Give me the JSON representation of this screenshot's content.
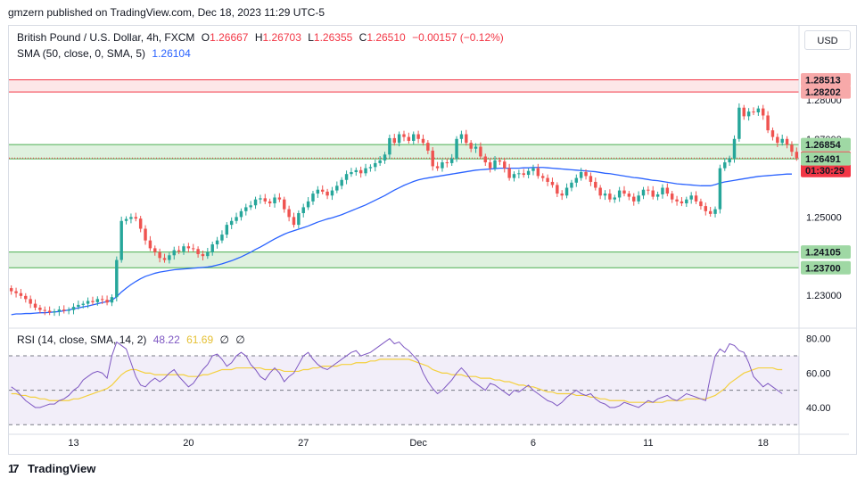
{
  "header": {
    "publisher": "gmzern published on TradingView.com, Dec 18, 2023 11:29 UTC-5"
  },
  "legend": {
    "symbol": "British Pound / U.S. Dollar, 4h, FXCM",
    "o_label": "O",
    "o": "1.26667",
    "h_label": "H",
    "h": "1.26703",
    "l_label": "L",
    "l": "1.26355",
    "c_label": "C",
    "c": "1.26510",
    "change": "−0.00157 (−0.12%)"
  },
  "sma": {
    "label": "SMA (50, close, 0, SMA, 5)",
    "value": "1.26104",
    "color": "#2962ff"
  },
  "rsi": {
    "label": "RSI (14, close, SMA, 14, 2)",
    "value": "48.22",
    "ma_value": "61.69",
    "extra1": "∅",
    "extra2": "∅",
    "line_color": "#7e57c2",
    "ma_color": "#f4d03f"
  },
  "currency_button": "USD",
  "price_axis": {
    "ticks": [
      "1.28000",
      "1.27000",
      "1.25000",
      "1.23000"
    ]
  },
  "price_tags": [
    {
      "text": "1.28513",
      "bg": "#f7a9a9"
    },
    {
      "text": "1.28202",
      "bg": "#f7a9a9"
    },
    {
      "text": "1.26854",
      "bg": "#9fd8a4"
    },
    {
      "text": "1.26510",
      "bg": "#f23645",
      "fg": "#ffffff"
    },
    {
      "text": "01:30:29",
      "bg": "#f23645",
      "fg": "#ffffff"
    },
    {
      "text": "1.26491",
      "bg": "#9fd8a4"
    },
    {
      "text": "1.24105",
      "bg": "#9fd8a4"
    },
    {
      "text": "1.23700",
      "bg": "#9fd8a4"
    }
  ],
  "rsi_axis": {
    "ticks": [
      "80.00",
      "60.00",
      "40.00"
    ]
  },
  "time_axis": {
    "labels": [
      "13",
      "20",
      "27",
      "Dec",
      "6",
      "11",
      "18"
    ]
  },
  "footer": {
    "brand": "TradingView"
  },
  "colors": {
    "up": "#26a69a",
    "down": "#ef5350",
    "zone_green": "#4caf50",
    "zone_red": "#f23645"
  },
  "chart_data": {
    "type": "candlestick",
    "price_range": [
      1.222,
      1.2905
    ],
    "zones": [
      {
        "from": 1.28202,
        "to": 1.28513,
        "color": "red"
      },
      {
        "from": 1.26491,
        "to": 1.26854,
        "color": "green"
      },
      {
        "from": 1.237,
        "to": 1.24105,
        "color": "green"
      }
    ],
    "current_price": 1.2651,
    "close": [
      1.231,
      1.2305,
      1.2298,
      1.229,
      1.2278,
      1.2268,
      1.2262,
      1.226,
      1.2256,
      1.2258,
      1.2263,
      1.226,
      1.2262,
      1.227,
      1.2275,
      1.2278,
      1.2285,
      1.2282,
      1.229,
      1.2288,
      1.2281,
      1.2295,
      1.239,
      1.249,
      1.2495,
      1.25,
      1.2496,
      1.247,
      1.244,
      1.242,
      1.241,
      1.2395,
      1.239,
      1.2402,
      1.2415,
      1.2412,
      1.2425,
      1.242,
      1.2418,
      1.2405,
      1.24,
      1.241,
      1.243,
      1.244,
      1.2455,
      1.248,
      1.249,
      1.25,
      1.2515,
      1.2525,
      1.253,
      1.2545,
      1.2548,
      1.254,
      1.2535,
      1.255,
      1.2545,
      1.252,
      1.25,
      1.248,
      1.251,
      1.2525,
      1.254,
      1.256,
      1.257,
      1.2565,
      1.2555,
      1.2568,
      1.258,
      1.2595,
      1.261,
      1.2615,
      1.262,
      1.2612,
      1.2625,
      1.2628,
      1.2638,
      1.2645,
      1.266,
      1.2702,
      1.269,
      1.2712,
      1.2705,
      1.2695,
      1.2712,
      1.27,
      1.269,
      1.267,
      1.263,
      1.2625,
      1.264,
      1.2638,
      1.265,
      1.27,
      1.2712,
      1.269,
      1.2675,
      1.268,
      1.2655,
      1.264,
      1.2625,
      1.2645,
      1.2642,
      1.2625,
      1.26,
      1.261,
      1.2612,
      1.2608,
      1.2618,
      1.2625,
      1.2605,
      1.26,
      1.259,
      1.2582,
      1.256,
      1.2555,
      1.2575,
      1.2588,
      1.26,
      1.2615,
      1.2605,
      1.259,
      1.2575,
      1.2555,
      1.256,
      1.2545,
      1.255,
      1.2568,
      1.256,
      1.2552,
      1.254,
      1.2555,
      1.257,
      1.2568,
      1.2552,
      1.2558,
      1.2575,
      1.256,
      1.2545,
      1.254,
      1.2535,
      1.2545,
      1.2555,
      1.254,
      1.2528,
      1.2515,
      1.2508,
      1.252,
      1.2625,
      1.264,
      1.265,
      1.27,
      1.278,
      1.2758,
      1.277,
      1.2768,
      1.2778,
      1.276,
      1.2722,
      1.2705,
      1.269,
      1.27,
      1.2685,
      1.2667,
      1.2651
    ],
    "sma50": [
      1.225,
      1.2252,
      1.2252,
      1.2253,
      1.2253,
      1.2254,
      1.2255,
      1.2255,
      1.2256,
      1.2257,
      1.2258,
      1.226,
      1.2262,
      1.2265,
      1.2267,
      1.227,
      1.2272,
      1.2275,
      1.2278,
      1.2281,
      1.2283,
      1.2287,
      1.2296,
      1.2308,
      1.2318,
      1.2327,
      1.2335,
      1.2342,
      1.2348,
      1.2352,
      1.2356,
      1.2359,
      1.2361,
      1.2363,
      1.2365,
      1.2366,
      1.2367,
      1.2368,
      1.2369,
      1.237,
      1.2371,
      1.2372,
      1.2374,
      1.2377,
      1.238,
      1.2384,
      1.2388,
      1.2393,
      1.2398,
      1.2404,
      1.241,
      1.2417,
      1.2423,
      1.243,
      1.2437,
      1.2444,
      1.245,
      1.2456,
      1.2461,
      1.2465,
      1.2469,
      1.2473,
      1.2477,
      1.2482,
      1.2487,
      1.2491,
      1.2495,
      1.2498,
      1.2502,
      1.2506,
      1.2511,
      1.2516,
      1.2521,
      1.2526,
      1.2531,
      1.2537,
      1.2543,
      1.2549,
      1.2555,
      1.2562,
      1.2569,
      1.2575,
      1.2581,
      1.2586,
      1.2591,
      1.2595,
      1.2598,
      1.26,
      1.2602,
      1.2604,
      1.2606,
      1.2608,
      1.261,
      1.2612,
      1.2614,
      1.2616,
      1.2618,
      1.262,
      1.2621,
      1.2622,
      1.2623,
      1.2624,
      1.2625,
      1.2625,
      1.2625,
      1.2625,
      1.2625,
      1.2626,
      1.2626,
      1.2627,
      1.2627,
      1.2627,
      1.2626,
      1.2625,
      1.2624,
      1.2623,
      1.2622,
      1.2621,
      1.262,
      1.2619,
      1.2618,
      1.2617,
      1.2616,
      1.2614,
      1.2612,
      1.2611,
      1.2609,
      1.2607,
      1.2605,
      1.2603,
      1.2601,
      1.26,
      1.2598,
      1.2596,
      1.2594,
      1.2593,
      1.2591,
      1.2589,
      1.2587,
      1.2585,
      1.2584,
      1.2583,
      1.2582,
      1.2581,
      1.258,
      1.258,
      1.258,
      1.2583,
      1.2587,
      1.259,
      1.2592,
      1.2594,
      1.2596,
      1.2598,
      1.26,
      1.2602,
      1.2604,
      1.2605,
      1.2606,
      1.2607,
      1.2608,
      1.2609,
      1.261,
      1.261
    ],
    "rsi": [
      52,
      50,
      47,
      44,
      42,
      40,
      40,
      41,
      42,
      42,
      44,
      45,
      47,
      50,
      52,
      56,
      58,
      60,
      61,
      60,
      57,
      70,
      78,
      76,
      74,
      66,
      58,
      53,
      52,
      55,
      57,
      55,
      57,
      60,
      62,
      58,
      55,
      52,
      54,
      58,
      62,
      65,
      70,
      71,
      68,
      64,
      66,
      70,
      72,
      70,
      65,
      62,
      58,
      56,
      60,
      63,
      60,
      55,
      58,
      60,
      65,
      70,
      72,
      68,
      65,
      63,
      62,
      64,
      66,
      68,
      70,
      72,
      73,
      70,
      71,
      72,
      74,
      76,
      78,
      80,
      77,
      78,
      75,
      73,
      70,
      67,
      60,
      55,
      51,
      48,
      50,
      53,
      56,
      60,
      63,
      60,
      56,
      54,
      52,
      50,
      54,
      53,
      51,
      49,
      47,
      50,
      49,
      51,
      53,
      50,
      48,
      46,
      44,
      43,
      41,
      43,
      46,
      48,
      50,
      48,
      47,
      48,
      45,
      43,
      42,
      40,
      40,
      41,
      43,
      42,
      41,
      40,
      42,
      44,
      43,
      45,
      46,
      47,
      45,
      44,
      46,
      48,
      47,
      46,
      45,
      44,
      58,
      70,
      74,
      72,
      77,
      76,
      73,
      72,
      66,
      58,
      55,
      52,
      54,
      52,
      50,
      48
    ],
    "rsi_ma": [
      48,
      48,
      47,
      47,
      46,
      46,
      45,
      45,
      44,
      44,
      44,
      44,
      44,
      45,
      45,
      46,
      47,
      48,
      49,
      50,
      51,
      53,
      56,
      59,
      61,
      62,
      62,
      61,
      60,
      60,
      59,
      59,
      59,
      59,
      59,
      59,
      59,
      58,
      58,
      58,
      59,
      59,
      60,
      61,
      62,
      62,
      62,
      63,
      63,
      63,
      63,
      63,
      63,
      62,
      62,
      62,
      62,
      61,
      61,
      61,
      61,
      62,
      62,
      63,
      63,
      64,
      64,
      64,
      64,
      65,
      65,
      65,
      66,
      66,
      66,
      67,
      67,
      68,
      68,
      68,
      68,
      68,
      68,
      68,
      67,
      66,
      65,
      64,
      62,
      61,
      60,
      60,
      59,
      59,
      59,
      58,
      58,
      58,
      57,
      57,
      57,
      56,
      56,
      55,
      55,
      54,
      53,
      53,
      52,
      52,
      51,
      50,
      49,
      49,
      48,
      48,
      48,
      48,
      47,
      47,
      47,
      46,
      46,
      45,
      45,
      44,
      44,
      44,
      44,
      43,
      43,
      43,
      43,
      43,
      43,
      43,
      43,
      44,
      44,
      44,
      44,
      45,
      45,
      45,
      45,
      45,
      46,
      47,
      49,
      51,
      54,
      56,
      58,
      60,
      61,
      62,
      63,
      63,
      63,
      63,
      62,
      62
    ],
    "rsi_range": [
      26,
      84
    ],
    "rsi_levels": [
      70,
      50,
      30
    ],
    "time_labels": [
      "13",
      "20",
      "27",
      "Dec",
      "6",
      "11",
      "18"
    ]
  }
}
